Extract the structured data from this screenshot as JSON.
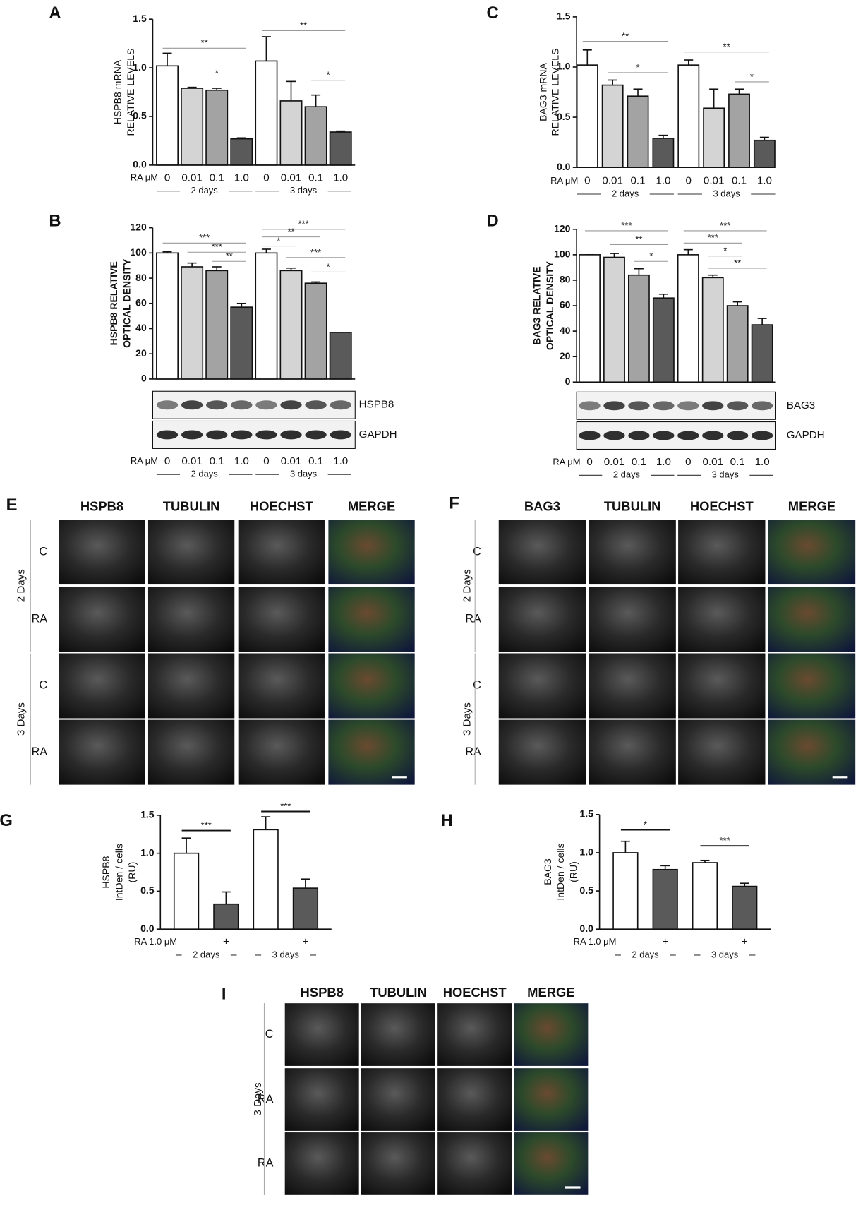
{
  "chart_data": [
    {
      "panel": "A",
      "type": "bar",
      "ylabel": [
        "HSPB8 mRNA",
        "RELATIVE LEVELS"
      ],
      "xlabel": "RA μM",
      "categories": [
        "0",
        "0.01",
        "0.1",
        "1.0",
        "0",
        "0.01",
        "0.1",
        "1.0"
      ],
      "groups": [
        "2 days",
        "3 days"
      ],
      "values": [
        1.02,
        0.79,
        0.77,
        0.27,
        1.07,
        0.66,
        0.6,
        0.34
      ],
      "errors": [
        0.13,
        0.01,
        0.02,
        0.01,
        0.25,
        0.2,
        0.12,
        0.01
      ],
      "colors": [
        "#ffffff",
        "#d4d4d4",
        "#a3a3a3",
        "#5a5a5a",
        "#ffffff",
        "#d4d4d4",
        "#a3a3a3",
        "#5a5a5a"
      ],
      "ylim": [
        0,
        1.5
      ],
      "yticks": [
        {
          "value": 0,
          "label": "0.0"
        },
        0.5,
        {
          "value": 1,
          "label": "1.0"
        },
        1.5
      ],
      "comparisons": [
        {
          "bars": [
            0,
            3
          ],
          "label": "**"
        },
        {
          "bars": [
            1,
            3
          ],
          "label": "*"
        },
        {
          "bars": [
            4,
            7
          ],
          "label": "**"
        },
        {
          "bars": [
            6,
            7
          ],
          "label": "*"
        }
      ]
    },
    {
      "panel": "B",
      "type": "bar",
      "ylabel": [
        "HSPB8 RELATIVE",
        "OPTICAL DENSITY"
      ],
      "xlabel": "RA μM",
      "categories": [
        "0",
        "0.01",
        "0.1",
        "1.0",
        "0",
        "0.01",
        "0.1",
        "1.0"
      ],
      "groups": [
        "2 days",
        "3 days"
      ],
      "values": [
        100,
        89,
        86,
        57,
        100,
        86,
        76,
        37
      ],
      "errors": [
        1,
        3,
        3,
        3,
        3,
        2,
        1,
        0
      ],
      "colors": [
        "#ffffff",
        "#d4d4d4",
        "#a3a3a3",
        "#5a5a5a",
        "#ffffff",
        "#d4d4d4",
        "#a3a3a3",
        "#5a5a5a"
      ],
      "ylim": [
        0,
        120
      ],
      "yticks": [
        0,
        20,
        40,
        60,
        80,
        100,
        120
      ],
      "comparisons": [
        {
          "bars": [
            0,
            3
          ],
          "label": "***"
        },
        {
          "bars": [
            1,
            3
          ],
          "label": "***"
        },
        {
          "bars": [
            2,
            3
          ],
          "label": "**"
        },
        {
          "bars": [
            4,
            5
          ],
          "label": "*"
        },
        {
          "bars": [
            4,
            6
          ],
          "label": "**"
        },
        {
          "bars": [
            4,
            7
          ],
          "label": "***"
        },
        {
          "bars": [
            5,
            7
          ],
          "label": "***"
        },
        {
          "bars": [
            6,
            7
          ],
          "label": "*"
        }
      ],
      "blot": [
        "HSPB8",
        "GAPDH"
      ]
    },
    {
      "panel": "C",
      "type": "bar",
      "ylabel": [
        "BAG3 mRNA",
        "RELATIVE LEVELS"
      ],
      "xlabel": "RA μM",
      "categories": [
        "0",
        "0.01",
        "0.1",
        "1.0",
        "0",
        "0.01",
        "0.1",
        "1.0"
      ],
      "groups": [
        "2 days",
        "3 days"
      ],
      "values": [
        1.02,
        0.82,
        0.71,
        0.29,
        1.02,
        0.59,
        0.73,
        0.27
      ],
      "errors": [
        0.15,
        0.05,
        0.07,
        0.03,
        0.05,
        0.19,
        0.05,
        0.03
      ],
      "colors": [
        "#ffffff",
        "#d4d4d4",
        "#a3a3a3",
        "#5a5a5a",
        "#ffffff",
        "#d4d4d4",
        "#a3a3a3",
        "#5a5a5a"
      ],
      "ylim": [
        0,
        1.5
      ],
      "yticks": [
        {
          "value": 0,
          "label": "0.0"
        },
        0.5,
        {
          "value": 1,
          "label": "1.0"
        },
        1.5
      ],
      "comparisons": [
        {
          "bars": [
            0,
            3
          ],
          "label": "**"
        },
        {
          "bars": [
            1,
            3
          ],
          "label": "*"
        },
        {
          "bars": [
            4,
            7
          ],
          "label": "**"
        },
        {
          "bars": [
            6,
            7
          ],
          "label": "*"
        }
      ]
    },
    {
      "panel": "D",
      "type": "bar",
      "ylabel": [
        "BAG3 RELATIVE",
        "OPTICAL DENSITY"
      ],
      "xlabel": "RA μM",
      "categories": [
        "0",
        "0.01",
        "0.1",
        "1.0",
        "0",
        "0.01",
        "0.1",
        "1.0"
      ],
      "groups": [
        "2 days",
        "3 days"
      ],
      "values": [
        100,
        98,
        84,
        66,
        100,
        82,
        60,
        45
      ],
      "errors": [
        0,
        3,
        5,
        3,
        4,
        2,
        3,
        5
      ],
      "colors": [
        "#ffffff",
        "#d4d4d4",
        "#a3a3a3",
        "#5a5a5a",
        "#ffffff",
        "#d4d4d4",
        "#a3a3a3",
        "#5a5a5a"
      ],
      "ylim": [
        0,
        120
      ],
      "yticks": [
        0,
        20,
        40,
        60,
        80,
        100,
        120
      ],
      "comparisons": [
        {
          "bars": [
            0,
            3
          ],
          "label": "***"
        },
        {
          "bars": [
            1,
            3
          ],
          "label": "**"
        },
        {
          "bars": [
            2,
            3
          ],
          "label": "*"
        },
        {
          "bars": [
            4,
            7
          ],
          "label": "***"
        },
        {
          "bars": [
            4,
            6
          ],
          "label": "***"
        },
        {
          "bars": [
            5,
            6
          ],
          "label": "*"
        },
        {
          "bars": [
            5,
            7
          ],
          "label": "**"
        }
      ],
      "blot": [
        "BAG3",
        "GAPDH"
      ]
    },
    {
      "panel": "G",
      "type": "bar",
      "ylabel": [
        "HSPB8",
        "IntDen / cells",
        "(RU)"
      ],
      "xlabel": "RA 1.0 μM",
      "categories": [
        "–",
        "+",
        "–",
        "+"
      ],
      "groups": [
        "2 days",
        "3 days"
      ],
      "values": [
        1.0,
        0.33,
        1.31,
        0.54
      ],
      "errors": [
        0.2,
        0.16,
        0.17,
        0.12
      ],
      "colors": [
        "#ffffff",
        "#5a5a5a",
        "#ffffff",
        "#5a5a5a"
      ],
      "ylim": [
        0,
        1.5
      ],
      "yticks": [
        {
          "value": 0,
          "label": "0.0"
        },
        0.5,
        {
          "value": 1,
          "label": "1.0"
        },
        1.5
      ],
      "comparisons": [
        {
          "bars": [
            0,
            1
          ],
          "label": "***"
        },
        {
          "bars": [
            2,
            3
          ],
          "label": "***"
        }
      ]
    },
    {
      "panel": "H",
      "type": "bar",
      "ylabel": [
        "BAG3",
        "IntDen / cells",
        "(RU)"
      ],
      "xlabel": "RA 1.0 μM",
      "categories": [
        "–",
        "+",
        "–",
        "+"
      ],
      "groups": [
        "2 days",
        "3 days"
      ],
      "values": [
        1.0,
        0.78,
        0.87,
        0.56
      ],
      "errors": [
        0.15,
        0.05,
        0.03,
        0.04
      ],
      "colors": [
        "#ffffff",
        "#5a5a5a",
        "#ffffff",
        "#5a5a5a"
      ],
      "ylim": [
        0,
        1.5
      ],
      "yticks": [
        {
          "value": 0,
          "label": "0.0"
        },
        0.5,
        {
          "value": 1,
          "label": "1.0"
        },
        1.5
      ],
      "comparisons": [
        {
          "bars": [
            0,
            1
          ],
          "label": "*"
        },
        {
          "bars": [
            2,
            3
          ],
          "label": "***"
        }
      ]
    }
  ],
  "image_panels": [
    {
      "panel": "E",
      "channels": [
        "HSPB8",
        "TUBULIN",
        "HOECHST",
        "MERGE"
      ],
      "channel_colors": [
        "#e3262b",
        "#17963a",
        "#3a45a8",
        "#111111"
      ],
      "rows": [
        "C",
        "RA",
        "C",
        "RA"
      ],
      "groups": [
        "2 Days",
        "3 Days"
      ]
    },
    {
      "panel": "F",
      "channels": [
        "BAG3",
        "TUBULIN",
        "HOECHST",
        "MERGE"
      ],
      "channel_colors": [
        "#e3262b",
        "#17963a",
        "#3a45a8",
        "#111111"
      ],
      "rows": [
        "C",
        "RA",
        "C",
        "RA"
      ],
      "groups": [
        "2 Days",
        "3 Days"
      ]
    },
    {
      "panel": "I",
      "channels": [
        "HSPB8",
        "TUBULIN",
        "HOECHST",
        "MERGE"
      ],
      "channel_colors": [
        "#e3262b",
        "#17963a",
        "#3a45a8",
        "#111111"
      ],
      "rows": [
        "C",
        "RA",
        "RA"
      ],
      "groups": [
        "3 Days"
      ]
    }
  ]
}
